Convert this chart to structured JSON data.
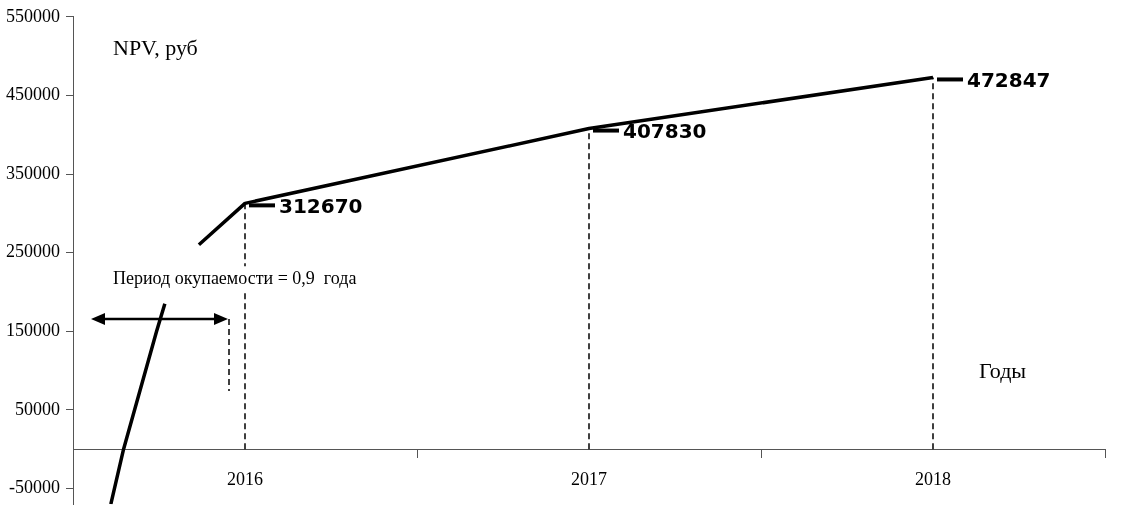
{
  "chart_data": {
    "type": "line",
    "xlabel": "Годы",
    "ylabel": "NPV, руб",
    "annotations": [
      "Период окупаемости = 0,9  года"
    ],
    "x": [
      2015.61,
      2015.647,
      2015.743,
      2015.767,
      2015.806,
      2015.866,
      2016,
      2017,
      2018
    ],
    "series": [
      {
        "color": "#000000",
        "values": [
          -70000,
          0,
          150000,
          185000,
          null,
          260000,
          312670,
          407830,
          472847
        ],
        "value_labels": [
          null,
          null,
          null,
          null,
          null,
          null,
          "312670",
          "407830",
          "472847"
        ]
      }
    ],
    "xlim": [
      2015.5,
      2018.5
    ],
    "xticks": [
      {
        "value": 2015.5,
        "label": null
      },
      2016,
      {
        "value": 2016.5,
        "label": null
      },
      2017,
      {
        "value": 2017.5,
        "label": null
      },
      2018,
      {
        "value": 2018.5,
        "label": null
      }
    ],
    "ylim": [
      -70000,
      550000
    ],
    "yticks": [
      -50000,
      50000,
      150000,
      250000,
      350000,
      450000,
      550000
    ],
    "ref_lines": [
      {
        "axis": "x",
        "value": 2016,
        "line_style": "dashed",
        "color": "#000000"
      },
      {
        "axis": "x",
        "value": 2017,
        "line_style": "dashed",
        "color": "#000000"
      },
      {
        "axis": "x",
        "value": 2018,
        "line_style": "dashed",
        "color": "#000000"
      }
    ],
    "grid": false,
    "legend": false,
    "marker": "none",
    "line_style": "solid"
  }
}
